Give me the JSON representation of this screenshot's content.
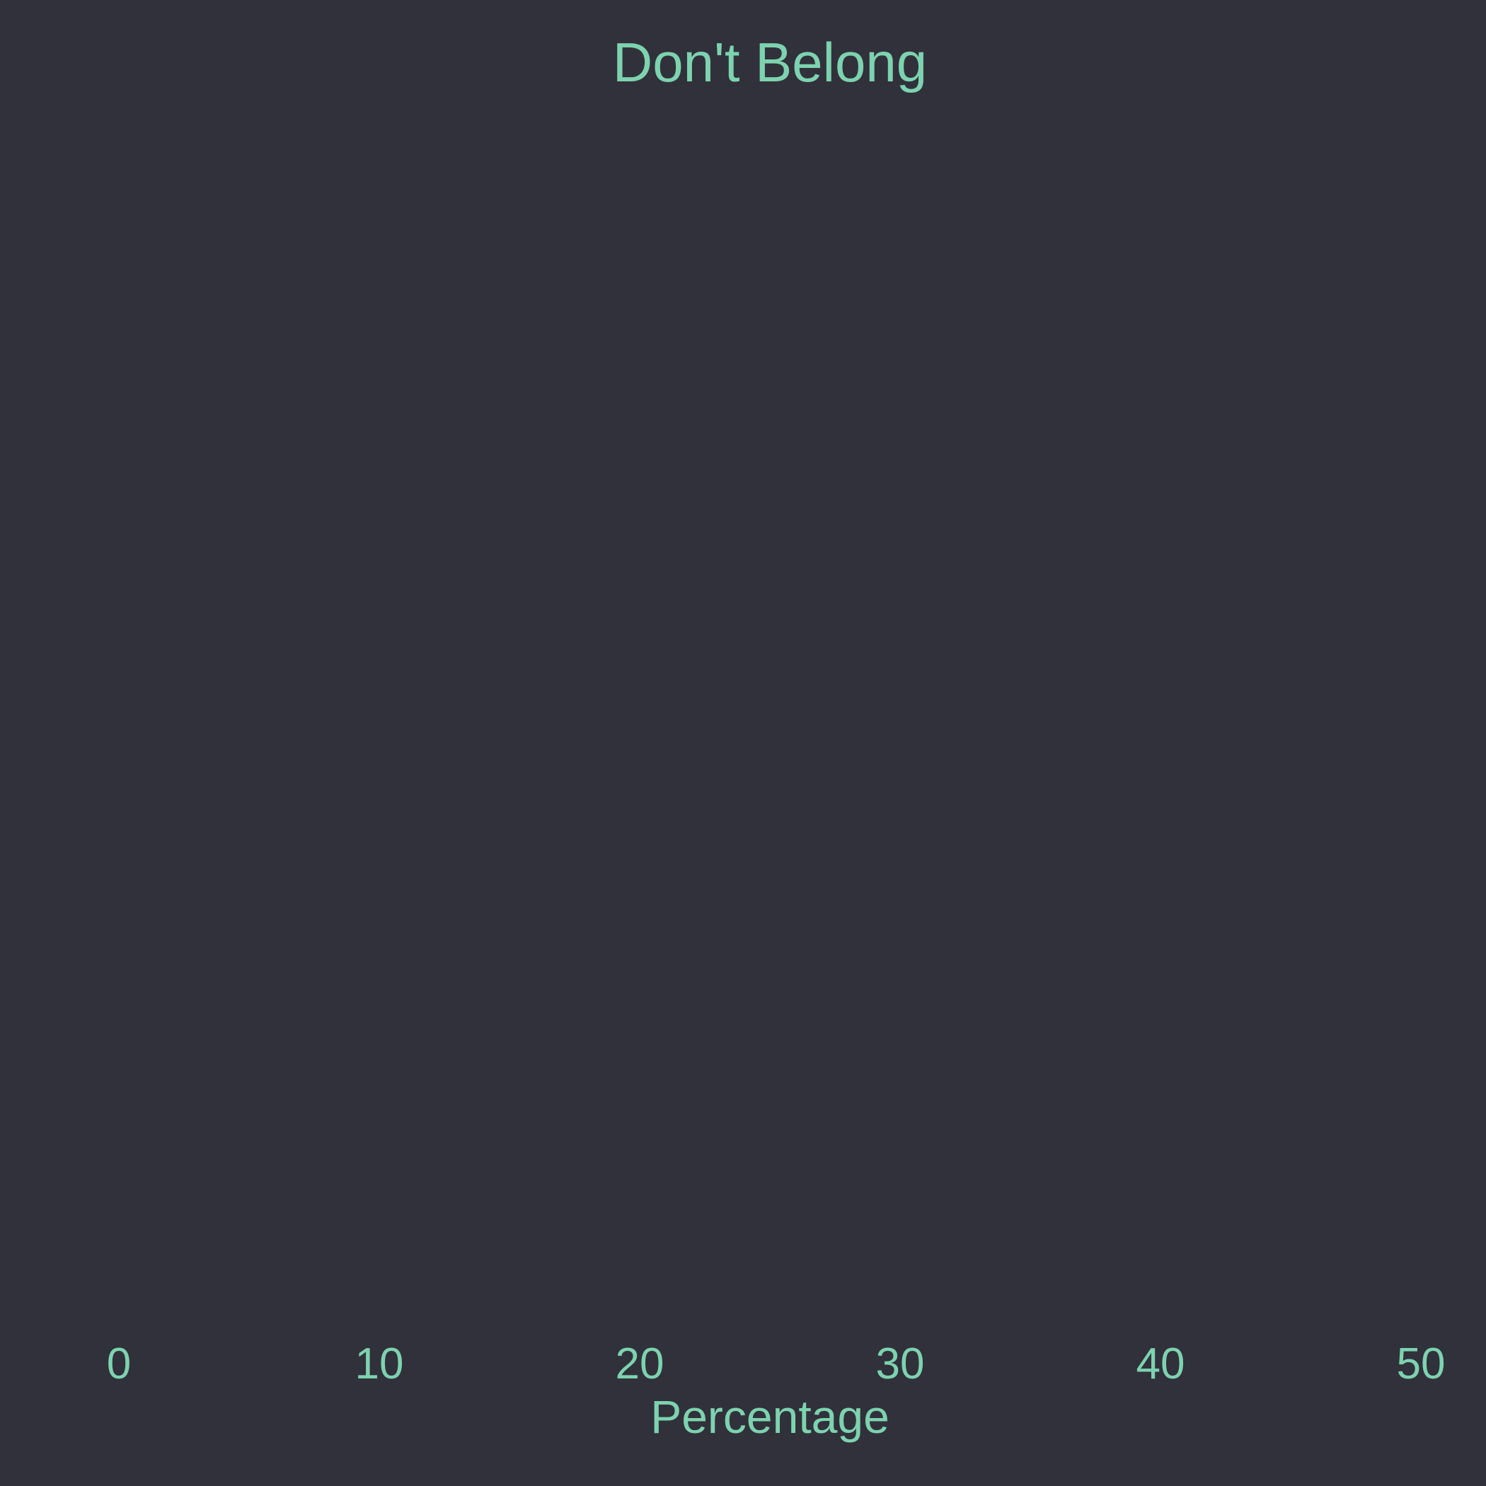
{
  "chart_data": {
    "type": "bar",
    "title": "Don't Belong",
    "xlabel": "Percentage",
    "ylabel": "",
    "xlim": [
      0,
      50
    ],
    "xticks": [
      0,
      10,
      20,
      30,
      40,
      50
    ],
    "xtick_labels": [
      "0",
      "10",
      "20",
      "30",
      "40",
      "50"
    ],
    "categories": [],
    "values": [],
    "grid": false,
    "legend": "none"
  },
  "colors": {
    "background": "#31313b",
    "text": "#7dd3af"
  }
}
